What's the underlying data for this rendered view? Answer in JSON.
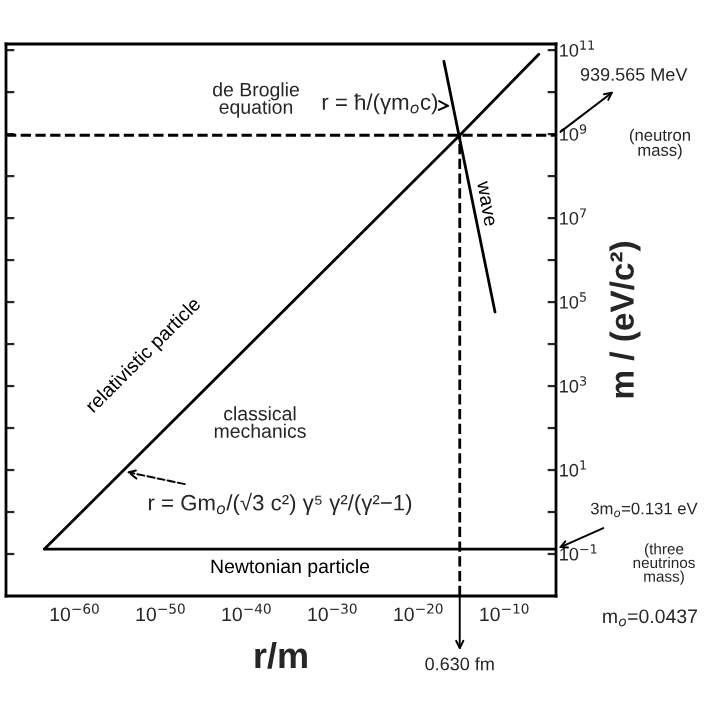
{
  "chart_data": {
    "type": "line",
    "xlabel": "r/m",
    "ylabel": "m / (eV/c²)",
    "log": "xy",
    "xlim": [
      1e-68,
      0.0001
    ],
    "ylim": [
      0.01,
      140000000000.0
    ],
    "xticks": [
      {
        "value": 1e-60,
        "label": "10$^{−60}$"
      },
      {
        "value": 1e-50,
        "label": "10$^{−50}$"
      },
      {
        "value": 1e-40,
        "label": "10$^{−40}$"
      },
      {
        "value": 1e-30,
        "label": "10$^{−30}$"
      },
      {
        "value": 1e-20,
        "label": "10$^{−20}$"
      },
      {
        "value": 1e-10,
        "label": "10$^{−10}$"
      }
    ],
    "yticks": [
      {
        "value": 0.1,
        "label": "10$^{−1}$"
      },
      {
        "value": 1,
        "label": null
      },
      {
        "value": 10,
        "label": "10$^{1}$"
      },
      {
        "value": 100,
        "label": null
      },
      {
        "value": 1000,
        "label": "10$^{3}$"
      },
      {
        "value": 10000.0,
        "label": null
      },
      {
        "value": 100000.0,
        "label": "10$^{5}$"
      },
      {
        "value": 1000000.0,
        "label": null
      },
      {
        "value": 10000000.0,
        "label": "10$^{7}$"
      },
      {
        "value": 100000000.0,
        "label": null
      },
      {
        "value": 1000000000.0,
        "label": "10$^{9}$"
      },
      {
        "value": 10000000000.0,
        "label": null
      },
      {
        "value": 100000000000.0,
        "label": "10$^{11}$"
      }
    ],
    "grid": false,
    "legend": false,
    "marker": "none",
    "line_style": "solid",
    "series": [
      {
        "name": "relativistic particle",
        "color": "#000000",
        "x": [
          3e-64,
          6.3e-16,
          1e-06
        ],
        "values": [
          0.131,
          939565000.0,
          80000000000.0
        ]
      },
      {
        "name": "Newtonian particle",
        "color": "#000000",
        "x": [
          3e-64,
          0.0001
        ],
        "values": [
          0.131,
          0.131
        ]
      },
      {
        "name": "wave",
        "color": "#000000",
        "x": [
          9e-18,
          8e-12
        ],
        "values": [
          54000000000.0,
          58000.0
        ]
      }
    ],
    "ref_lines": [
      {
        "axis": "y",
        "value": 939565000.0,
        "label": "939.565 MeV",
        "line_style": "dashed",
        "color": "#000000"
      },
      {
        "axis": "x",
        "value": 6.3e-16,
        "label": "0.630 fm",
        "line_style": "dashed",
        "color": "#000000"
      }
    ],
    "annotations": [
      "de Broglie\nequation",
      {
        "text": "r = ħ/(γm$_{o}$c)",
        "x": 1e-16,
        "y": 4700000000.0
      },
      "classical\nmechanics",
      {
        "text": "r = Gm$_{o}$/(√3 c²) γ⁵ γ²/(γ²−1)",
        "x": 5e-55,
        "y": 9.3
      },
      "(neutron\nmass)",
      {
        "text": "3m$_{o}$=0.131 eV",
        "x": 0.0001,
        "y": 0.131
      },
      "(three\nneutrinos\nmass)",
      "m$_{o}$=0.0437"
    ]
  }
}
